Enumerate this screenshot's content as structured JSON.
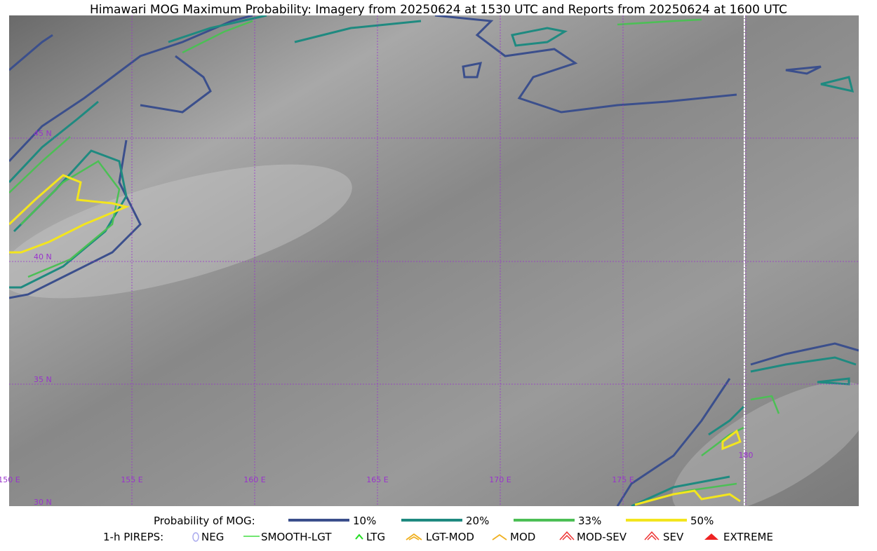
{
  "header": {
    "title": "Himawari MOG Maximum Probability: Imagery from 20250624 at 1530 UTC and Reports from 20250624 at 1600 UTC"
  },
  "map": {
    "lat_labels": [
      "45 N",
      "40 N",
      "35 N",
      "30 N"
    ],
    "lon_labels": [
      "150 E",
      "155 E",
      "160 E",
      "165 E",
      "170 E",
      "175 E",
      "180"
    ]
  },
  "legend": {
    "probability": {
      "label": "Probability of MOG:",
      "items": [
        "10%",
        "20%",
        "33%",
        "50%"
      ]
    },
    "pireps": {
      "label": "1-h PIREPS:",
      "items": [
        "NEG",
        "SMOOTH-LGT",
        "LTG",
        "LGT-MOD",
        "MOD",
        "MOD-SEV",
        "SEV",
        "EXTREME"
      ]
    }
  }
}
